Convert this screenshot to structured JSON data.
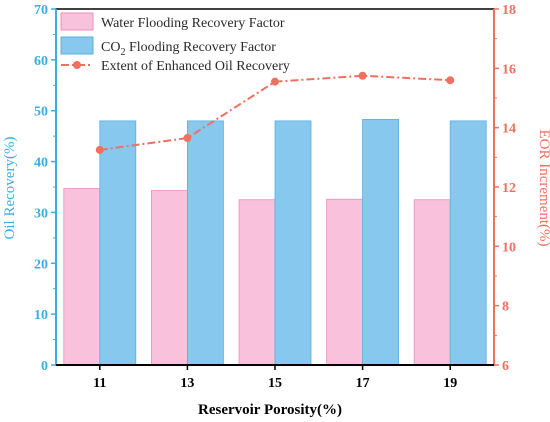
{
  "colors": {
    "water_bar": "#f9c1dc",
    "water_bar_edge": "#e88fbb",
    "co2_bar": "#87c8ef",
    "co2_bar_edge": "#5aaee0",
    "eor_line": "#f07060",
    "left_axis": "#3aaee0",
    "right_axis": "#f07060",
    "frame": "#000000"
  },
  "chart_data": {
    "type": "bar",
    "xlabel": "Reservoir Porosity(%)",
    "ylabel": "Oil Recovery(%)",
    "y2label": "EOR Increment(%)",
    "categories": [
      "11",
      "13",
      "15",
      "17",
      "19"
    ],
    "ylim": [
      0,
      70
    ],
    "yticks": [
      0,
      10,
      20,
      30,
      40,
      50,
      60,
      70
    ],
    "y2lim": [
      6,
      18
    ],
    "y2ticks": [
      6,
      8,
      10,
      12,
      14,
      16,
      18
    ],
    "legend_position": "top-left",
    "grid": false,
    "series": [
      {
        "name": "Water Flooding Recovery Factor",
        "type": "bar",
        "axis": "left",
        "values": [
          34.7,
          34.3,
          32.5,
          32.6,
          32.5
        ]
      },
      {
        "name": "CO",
        "name_subscript": "2",
        "name_suffix": " Flooding Recovery Factor",
        "type": "bar",
        "axis": "left",
        "values": [
          48.0,
          48.0,
          48.0,
          48.3,
          48.0
        ]
      },
      {
        "name": "Extent of Enhanced Oil Recovery",
        "type": "line",
        "axis": "right",
        "values": [
          13.25,
          13.65,
          15.55,
          15.75,
          15.6
        ]
      }
    ]
  }
}
